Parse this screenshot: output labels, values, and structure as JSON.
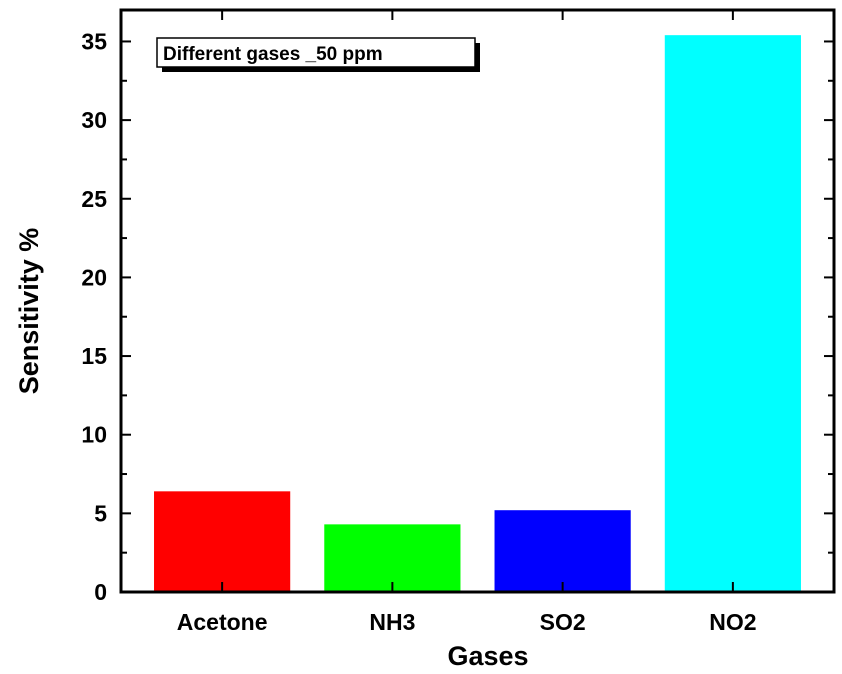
{
  "chart_data": {
    "type": "bar",
    "title": "",
    "xlabel": "Gases",
    "ylabel": "Sensitivity %",
    "legend_text": "Different gases _50 ppm",
    "legend_position": "top-left",
    "categories": [
      "Acetone",
      "NH3",
      "SO2",
      "NO2"
    ],
    "values": [
      6.4,
      4.3,
      5.2,
      35.4
    ],
    "colors": [
      "#ff0000",
      "#00ff00",
      "#0000ff",
      "#00ffff"
    ],
    "ylim": [
      0,
      37
    ],
    "yticks": [
      0,
      5,
      10,
      15,
      20,
      25,
      30,
      35
    ],
    "grid": false
  }
}
